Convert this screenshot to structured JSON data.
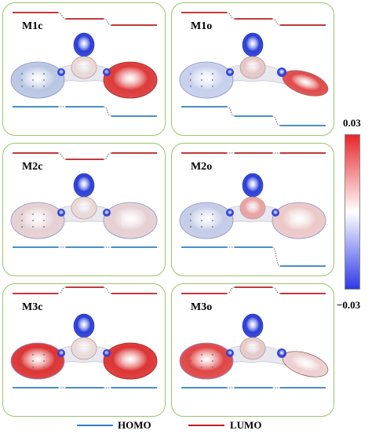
{
  "panels": [
    {
      "id": "m1c",
      "label": "M1c",
      "homo_steps": [
        0,
        0,
        1
      ],
      "lumo_steps": [
        0,
        1,
        2
      ],
      "left_color": "#b9c6e4",
      "right_color": "#dd3a3a",
      "core_color": "#e8d8d8",
      "tail": false
    },
    {
      "id": "m1o",
      "label": "M1o",
      "homo_steps": [
        0,
        1,
        2
      ],
      "lumo_steps": [
        0,
        1,
        2
      ],
      "left_color": "#c6d0ec",
      "right_color": "#e04a4a",
      "core_color": "#e6c6c6",
      "tail": true
    },
    {
      "id": "m2c",
      "label": "M2c",
      "homo_steps": [
        0,
        0,
        0
      ],
      "lumo_steps": [
        0,
        1,
        0
      ],
      "left_color": "#e5cfd2",
      "right_color": "#e5cfd2",
      "core_color": "#ead8d8",
      "tail": false
    },
    {
      "id": "m2o",
      "label": "M2o",
      "homo_steps": [
        0,
        0,
        2
      ],
      "lumo_steps": [
        0,
        0,
        0
      ],
      "left_color": "#c4cbe6",
      "right_color": "#ecc8c8",
      "core_color": "#e9a2a2",
      "tail": false
    },
    {
      "id": "m3c",
      "label": "M3c",
      "homo_steps": [
        0,
        0,
        0
      ],
      "lumo_steps": [
        0,
        -1,
        0
      ],
      "left_color": "#dc3434",
      "right_color": "#dc3434",
      "core_color": "#eadada",
      "tail": false
    },
    {
      "id": "m3o",
      "label": "M3o",
      "homo_steps": [
        0,
        0,
        0
      ],
      "lumo_steps": [
        0,
        -1,
        0
      ],
      "left_color": "#e04646",
      "right_color": "#ecd0d0",
      "core_color": "#e6caca",
      "tail": true
    }
  ],
  "colorbar": {
    "max_label": "0.03",
    "min_label": "−0.03",
    "top_color": "#e8262b",
    "mid_color": "#ffffff",
    "bottom_color": "#2f39e6"
  },
  "legend": {
    "homo_label": "HOMO",
    "lumo_label": "LUMO",
    "homo_color": "#2e7fc0",
    "lumo_color": "#b91d23"
  },
  "colors": {
    "panel_border": "#9cc46a",
    "negative_lobe": "#2b3fd8",
    "neutral_surface": "#e8e8ee"
  }
}
